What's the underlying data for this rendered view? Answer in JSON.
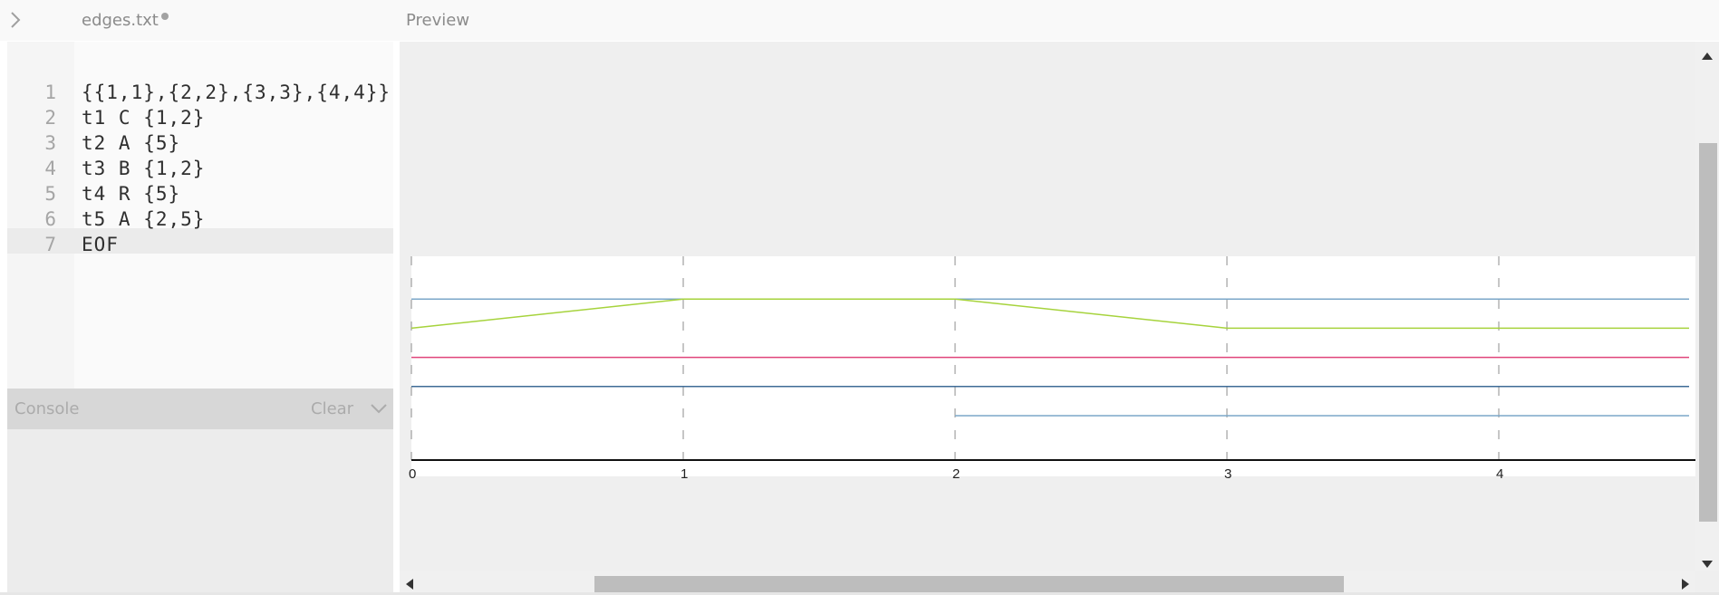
{
  "header": {
    "toggle_icon": "chevron-right-icon",
    "file_name": "edges.txt",
    "preview_title": "Preview"
  },
  "editor": {
    "lines": [
      {
        "num": "1",
        "text": "{{1,1},{2,2},{3,3},{4,4}}"
      },
      {
        "num": "2",
        "text": "t1 C {1,2}"
      },
      {
        "num": "3",
        "text": "t2 A {5}"
      },
      {
        "num": "4",
        "text": "t3 B {1,2}"
      },
      {
        "num": "5",
        "text": "t4 R {5}"
      },
      {
        "num": "6",
        "text": "t5 A {2,5}"
      },
      {
        "num": "7",
        "text": "EOF"
      }
    ]
  },
  "console": {
    "title": "Console",
    "clear_label": "Clear",
    "toggle_icon": "chevron-down-icon"
  },
  "chart_data": {
    "type": "line",
    "x_ticks": [
      "0",
      "1",
      "2",
      "3",
      "4"
    ],
    "xlim": [
      0,
      4.7
    ],
    "series": [
      {
        "color": "#7ba7c9",
        "points": [
          [
            0,
            1
          ],
          [
            4.7,
            1
          ]
        ]
      },
      {
        "color": "#a6d33c",
        "points": [
          [
            0,
            2
          ],
          [
            1,
            1
          ],
          [
            2,
            1
          ],
          [
            3,
            2
          ],
          [
            4.7,
            2
          ]
        ]
      },
      {
        "color": "#e0447a",
        "points": [
          [
            0,
            3
          ],
          [
            4.7,
            3
          ]
        ]
      },
      {
        "color": "#3f6b96",
        "points": [
          [
            0,
            4
          ],
          [
            4.7,
            4
          ]
        ]
      },
      {
        "color": "#7ba7c9",
        "points": [
          [
            2,
            5
          ],
          [
            4.7,
            5
          ]
        ]
      }
    ],
    "grid": "dashed vertical at ticks"
  }
}
